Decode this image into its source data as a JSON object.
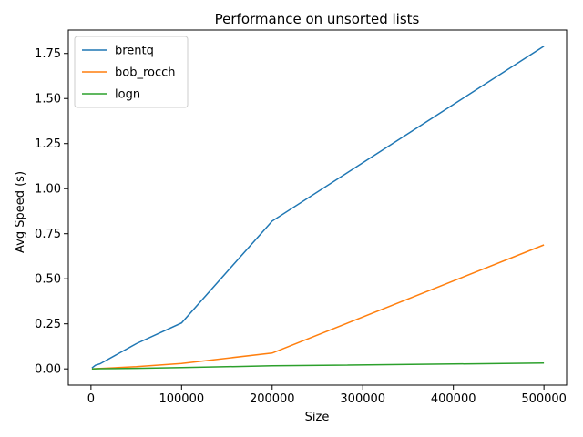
{
  "chart_data": {
    "type": "line",
    "title": "Performance on unsorted lists",
    "xlabel": "Size",
    "ylabel": "Avg Speed (s)",
    "xlim": [
      -25000,
      525000
    ],
    "ylim": [
      -0.09,
      1.88
    ],
    "xticks": [
      0,
      100000,
      200000,
      300000,
      400000,
      500000
    ],
    "xtick_labels": [
      "0",
      "100000",
      "200000",
      "300000",
      "400000",
      "500000"
    ],
    "yticks": [
      0,
      0.25,
      0.5,
      0.75,
      1.0,
      1.25,
      1.5,
      1.75
    ],
    "ytick_labels": [
      "0.00",
      "0.25",
      "0.50",
      "0.75",
      "1.00",
      "1.25",
      "1.50",
      "1.75"
    ],
    "grid": false,
    "legend_position": "top-left",
    "series": [
      {
        "name": "brentq",
        "color": "#1f77b4",
        "x": [
          1000,
          5000,
          10000,
          50000,
          100000,
          200000,
          500000
        ],
        "y": [
          0.005,
          0.02,
          0.028,
          0.14,
          0.255,
          0.82,
          1.79
        ]
      },
      {
        "name": "bob_rocch",
        "color": "#ff7f0e",
        "x": [
          1000,
          5000,
          10000,
          50000,
          100000,
          200000,
          500000
        ],
        "y": [
          0.0,
          0.001,
          0.002,
          0.012,
          0.03,
          0.088,
          0.688
        ]
      },
      {
        "name": "logn",
        "color": "#2ca02c",
        "x": [
          1000,
          5000,
          10000,
          50000,
          100000,
          200000,
          500000
        ],
        "y": [
          0.0,
          0.0005,
          0.001,
          0.003,
          0.007,
          0.017,
          0.032
        ]
      }
    ]
  }
}
